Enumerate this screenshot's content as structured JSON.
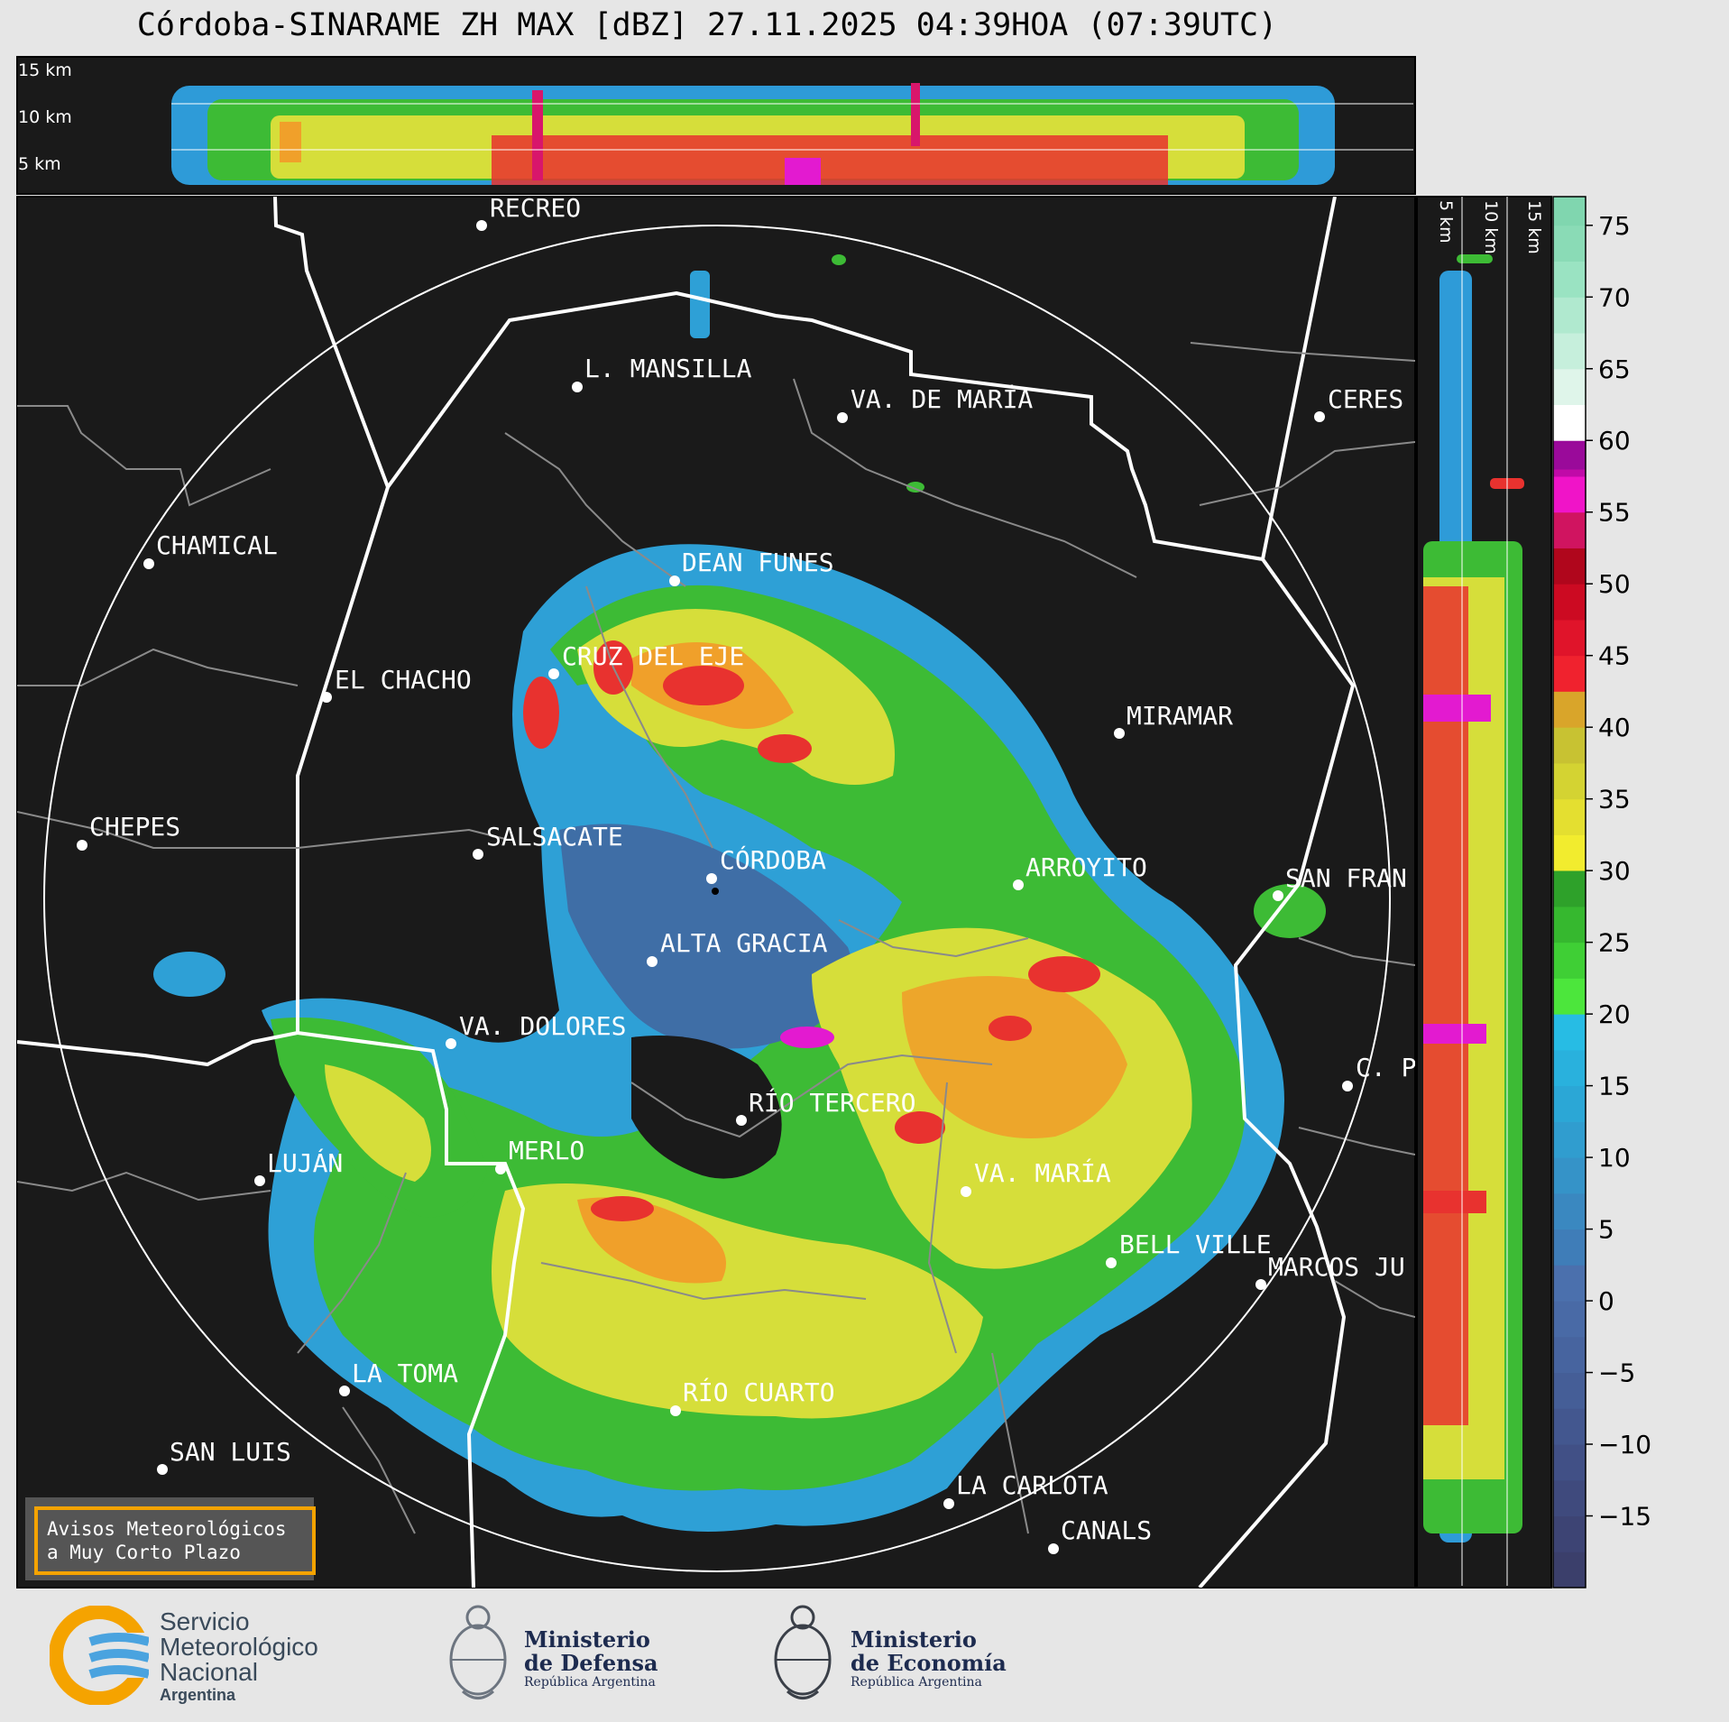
{
  "title": "Córdoba-SINARAME ZH MAX [dBZ] 27.11.2025 04:39HOA (07:39UTC)",
  "top_panel": {
    "height_labels": [
      "15 km",
      "10 km",
      "5 km"
    ]
  },
  "side_panel": {
    "height_labels": [
      "5 km",
      "10 km",
      "15 km"
    ]
  },
  "colorbar": {
    "ticks": [
      "75",
      "70",
      "65",
      "60",
      "55",
      "50",
      "45",
      "40",
      "35",
      "30",
      "25",
      "20",
      "15",
      "10",
      "5",
      "0",
      "−5",
      "−10",
      "−15"
    ],
    "range_dbz": [
      -20,
      77
    ]
  },
  "cities": [
    {
      "name": "RECREO"
    },
    {
      "name": "L. MANSILLA"
    },
    {
      "name": "VA. DE MARÍA"
    },
    {
      "name": "CERES"
    },
    {
      "name": "CHAMICAL"
    },
    {
      "name": "DEAN FUNES"
    },
    {
      "name": "CRUZ DEL EJE"
    },
    {
      "name": "EL CHACHO"
    },
    {
      "name": "MIRAMAR"
    },
    {
      "name": "CHEPES"
    },
    {
      "name": "SALSACATE"
    },
    {
      "name": "CÓRDOBA"
    },
    {
      "name": "ARROYITO"
    },
    {
      "name": "SAN FRAN"
    },
    {
      "name": "ALTA GRACIA"
    },
    {
      "name": "VA. DOLORES"
    },
    {
      "name": "C. P"
    },
    {
      "name": "RÍO TERCERO"
    },
    {
      "name": "LUJÁN"
    },
    {
      "name": "MERLO"
    },
    {
      "name": "VA. MARÍA"
    },
    {
      "name": "BELL VILLE"
    },
    {
      "name": "MARCOS JU"
    },
    {
      "name": "LA TOMA"
    },
    {
      "name": "RÍO CUARTO"
    },
    {
      "name": "SAN LUIS"
    },
    {
      "name": "LA CARLOTA"
    },
    {
      "name": "CANALS"
    }
  ],
  "warning_box": {
    "line1": "Avisos Meteorológicos",
    "line2": "a Muy Corto Plazo"
  },
  "logos": {
    "smn": {
      "line1": "Servicio",
      "line2": "Meteorológico",
      "line3": "Nacional",
      "line4": "Argentina"
    },
    "defensa": {
      "line1": "Ministerio",
      "line2": "de Defensa",
      "line3": "República Argentina"
    },
    "economia": {
      "line1": "Ministerio",
      "line2": "de Economía",
      "line3": "República Argentina"
    }
  },
  "colors": {
    "background": "#e6e6e6",
    "map_bg": "#1a1a1a",
    "accent_box": "#f5a300"
  }
}
